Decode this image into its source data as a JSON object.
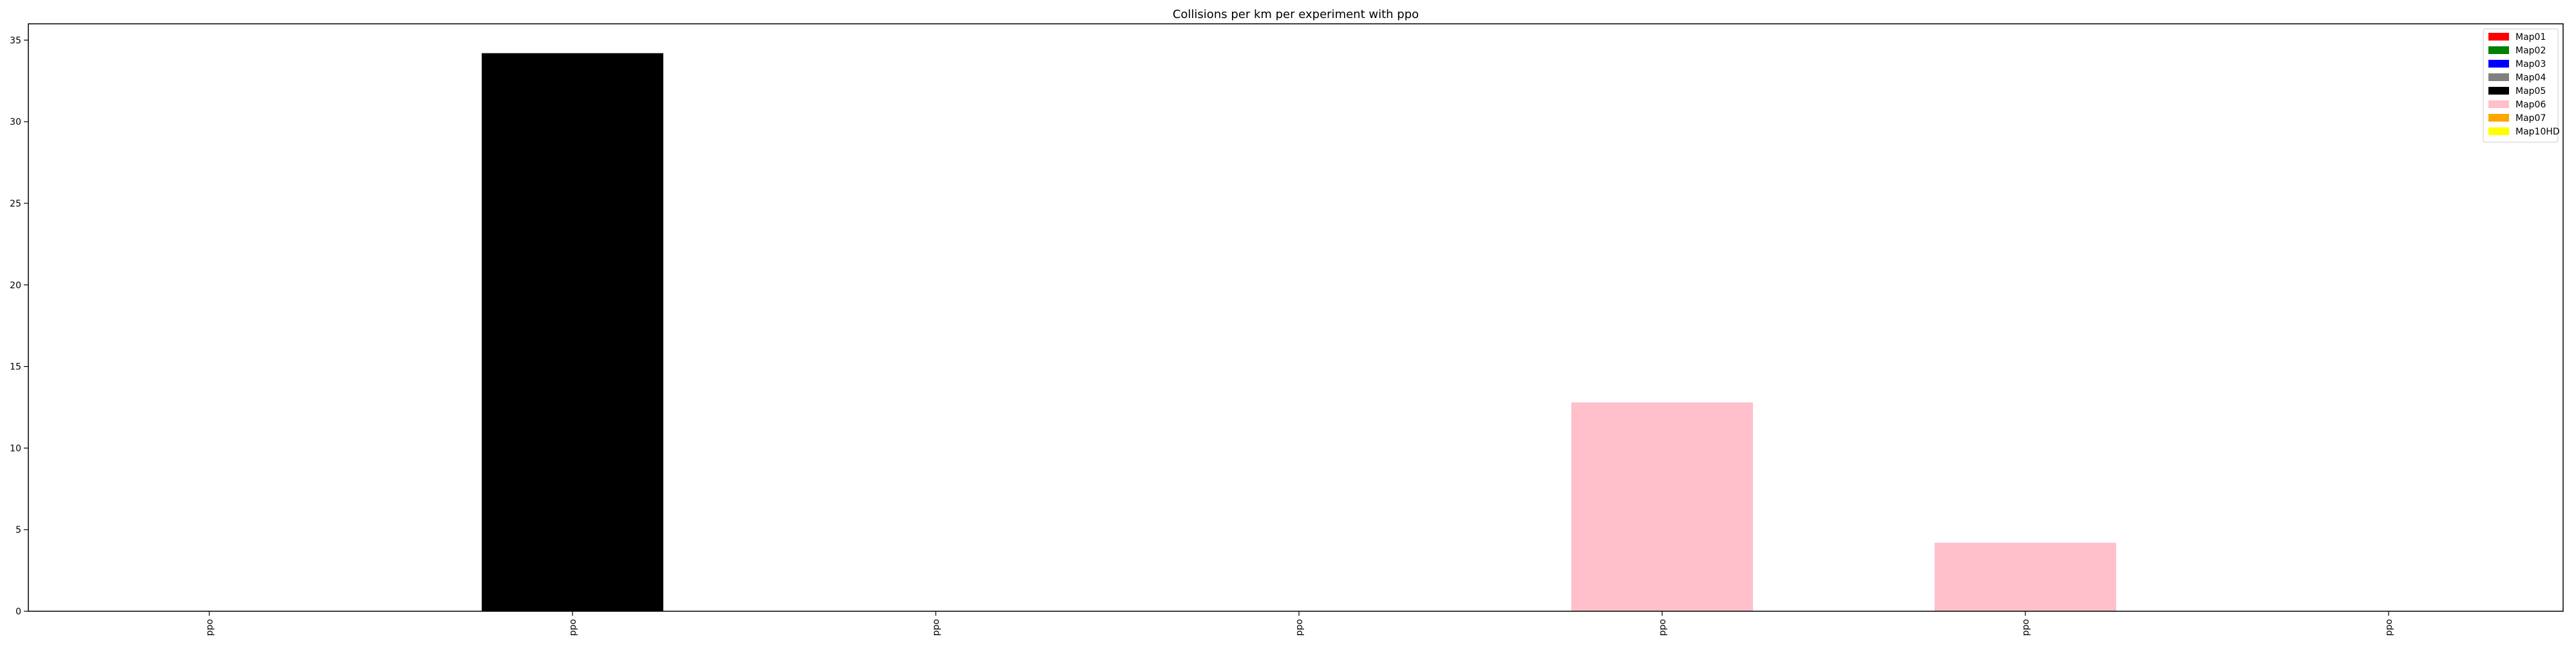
{
  "chart_data": {
    "type": "bar",
    "title": "Collisions per km per experiment with ppo",
    "xlabel": "",
    "ylabel": "",
    "categories": [
      "ppo",
      "ppo",
      "ppo",
      "ppo",
      "ppo",
      "ppo",
      "ppo"
    ],
    "values": [
      0,
      34.2,
      0,
      0,
      12.8,
      4.2,
      0
    ],
    "bar_maps": [
      "",
      "Map05",
      "",
      "",
      "Map06",
      "Map06",
      ""
    ],
    "ylim": [
      0,
      36
    ],
    "yticks": [
      0,
      5,
      10,
      15,
      20,
      25,
      30,
      35
    ],
    "grid": false,
    "legend_position": "top-right",
    "legend": [
      {
        "label": "Map01",
        "color": "#ff0000"
      },
      {
        "label": "Map02",
        "color": "#008000"
      },
      {
        "label": "Map03",
        "color": "#0000ff"
      },
      {
        "label": "Map04",
        "color": "#808080"
      },
      {
        "label": "Map05",
        "color": "#000000"
      },
      {
        "label": "Map06",
        "color": "#ffc0cb"
      },
      {
        "label": "Map07",
        "color": "#ffa500"
      },
      {
        "label": "Map10HD",
        "color": "#ffff00"
      }
    ]
  }
}
